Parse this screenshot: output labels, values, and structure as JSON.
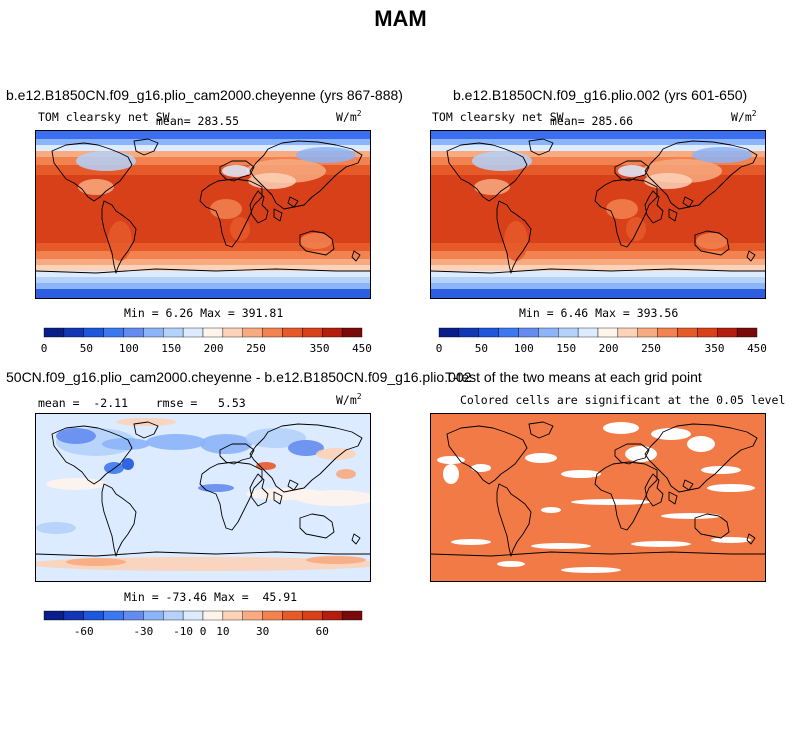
{
  "title": "MAM",
  "panels": [
    {
      "id": "p1",
      "case_title": "b.e12.B1850CN.f09_g16.plio_cam2000.cheyenne (yrs 867-888)",
      "variable": "TOM clearsky net SW",
      "mean_label": "mean= 283.55",
      "units_base": "W/m",
      "units_exp": "2",
      "minmax": "Min =   6.26 Max = 391.81"
    },
    {
      "id": "p2",
      "case_title": "b.e12.B1850CN.f09_g16.plio.002 (yrs 601-650)",
      "variable": "TOM clearsky net SW",
      "mean_label": "mean= 285.66",
      "units_base": "W/m",
      "units_exp": "2",
      "minmax": "Min =   6.46 Max = 393.56"
    },
    {
      "id": "p3",
      "case_title": "50CN.f09_g16.plio_cam2000.cheyenne - b.e12.B1850CN.f09_g16.plio.002",
      "stats_label": "mean =  -2.11    rmse =   5.53",
      "units_base": "W/m",
      "units_exp": "2",
      "minmax": "Min = -73.46 Max =  45.91"
    },
    {
      "id": "p4",
      "case_title": "T-test of the two means at each grid point",
      "subtitle": "Colored cells are significant at the 0.05 level"
    }
  ],
  "chart_data": [
    {
      "type": "heatmap",
      "title": "b.e12.B1850CN.f09_g16.plio_cam2000.cheyenne (yrs 867-888)",
      "variable": "TOM clearsky net SW",
      "units": "W/m2",
      "mean": 283.55,
      "min": 6.26,
      "max": 391.81,
      "colorbar": {
        "levels": [
          0,
          25,
          50,
          75,
          100,
          125,
          150,
          175,
          200,
          225,
          250,
          275,
          300,
          350,
          400,
          450
        ],
        "tick_labels": [
          "0",
          "50",
          "100",
          "150",
          "200",
          "250",
          "350",
          "450"
        ],
        "colors": [
          "#0a1e8a",
          "#1236b4",
          "#1e56dc",
          "#3c78f0",
          "#648cf0",
          "#8cb4f8",
          "#b4d2fa",
          "#dcebff",
          "#fff4ec",
          "#fcd2b8",
          "#f8aa80",
          "#f28250",
          "#e65a2a",
          "#d8401a",
          "#b41e0e",
          "#7a0a0a"
        ]
      }
    },
    {
      "type": "heatmap",
      "title": "b.e12.B1850CN.f09_g16.plio.002 (yrs 601-650)",
      "variable": "TOM clearsky net SW",
      "units": "W/m2",
      "mean": 285.66,
      "min": 6.46,
      "max": 393.56,
      "colorbar": {
        "levels": [
          0,
          25,
          50,
          75,
          100,
          125,
          150,
          175,
          200,
          225,
          250,
          275,
          300,
          350,
          400,
          450
        ],
        "tick_labels": [
          "0",
          "50",
          "100",
          "150",
          "200",
          "250",
          "350",
          "450"
        ],
        "colors": [
          "#0a1e8a",
          "#1236b4",
          "#1e56dc",
          "#3c78f0",
          "#648cf0",
          "#8cb4f8",
          "#b4d2fa",
          "#dcebff",
          "#fff4ec",
          "#fcd2b8",
          "#f8aa80",
          "#f28250",
          "#e65a2a",
          "#d8401a",
          "#b41e0e",
          "#7a0a0a"
        ]
      }
    },
    {
      "type": "heatmap",
      "title": "50CN.f09_g16.plio_cam2000.cheyenne - b.e12.B1850CN.f09_g16.plio.002",
      "units": "W/m2",
      "mean": -2.11,
      "rmse": 5.53,
      "min": -73.46,
      "max": 45.91,
      "colorbar": {
        "levels": [
          -80,
          -70,
          -60,
          -50,
          -40,
          -30,
          -20,
          -10,
          0,
          10,
          20,
          30,
          40,
          50,
          60,
          70,
          80
        ],
        "tick_labels": [
          "-60",
          "-30",
          "-10",
          "0",
          "10",
          "30",
          "60"
        ],
        "colors": [
          "#0a1e8a",
          "#1236b4",
          "#1e56dc",
          "#3c78f0",
          "#648cf0",
          "#8cb4f8",
          "#b4d2fa",
          "#dcebff",
          "#fff4ec",
          "#fcd2b8",
          "#f8aa80",
          "#f28250",
          "#e65a2a",
          "#d8401a",
          "#b41e0e",
          "#7a0a0a"
        ]
      }
    },
    {
      "type": "heatmap",
      "title": "T-test of the two means at each grid point",
      "subtitle": "Colored cells are significant at the 0.05 level",
      "significance_level": 0.05,
      "significant_color": "#f27a46"
    }
  ]
}
